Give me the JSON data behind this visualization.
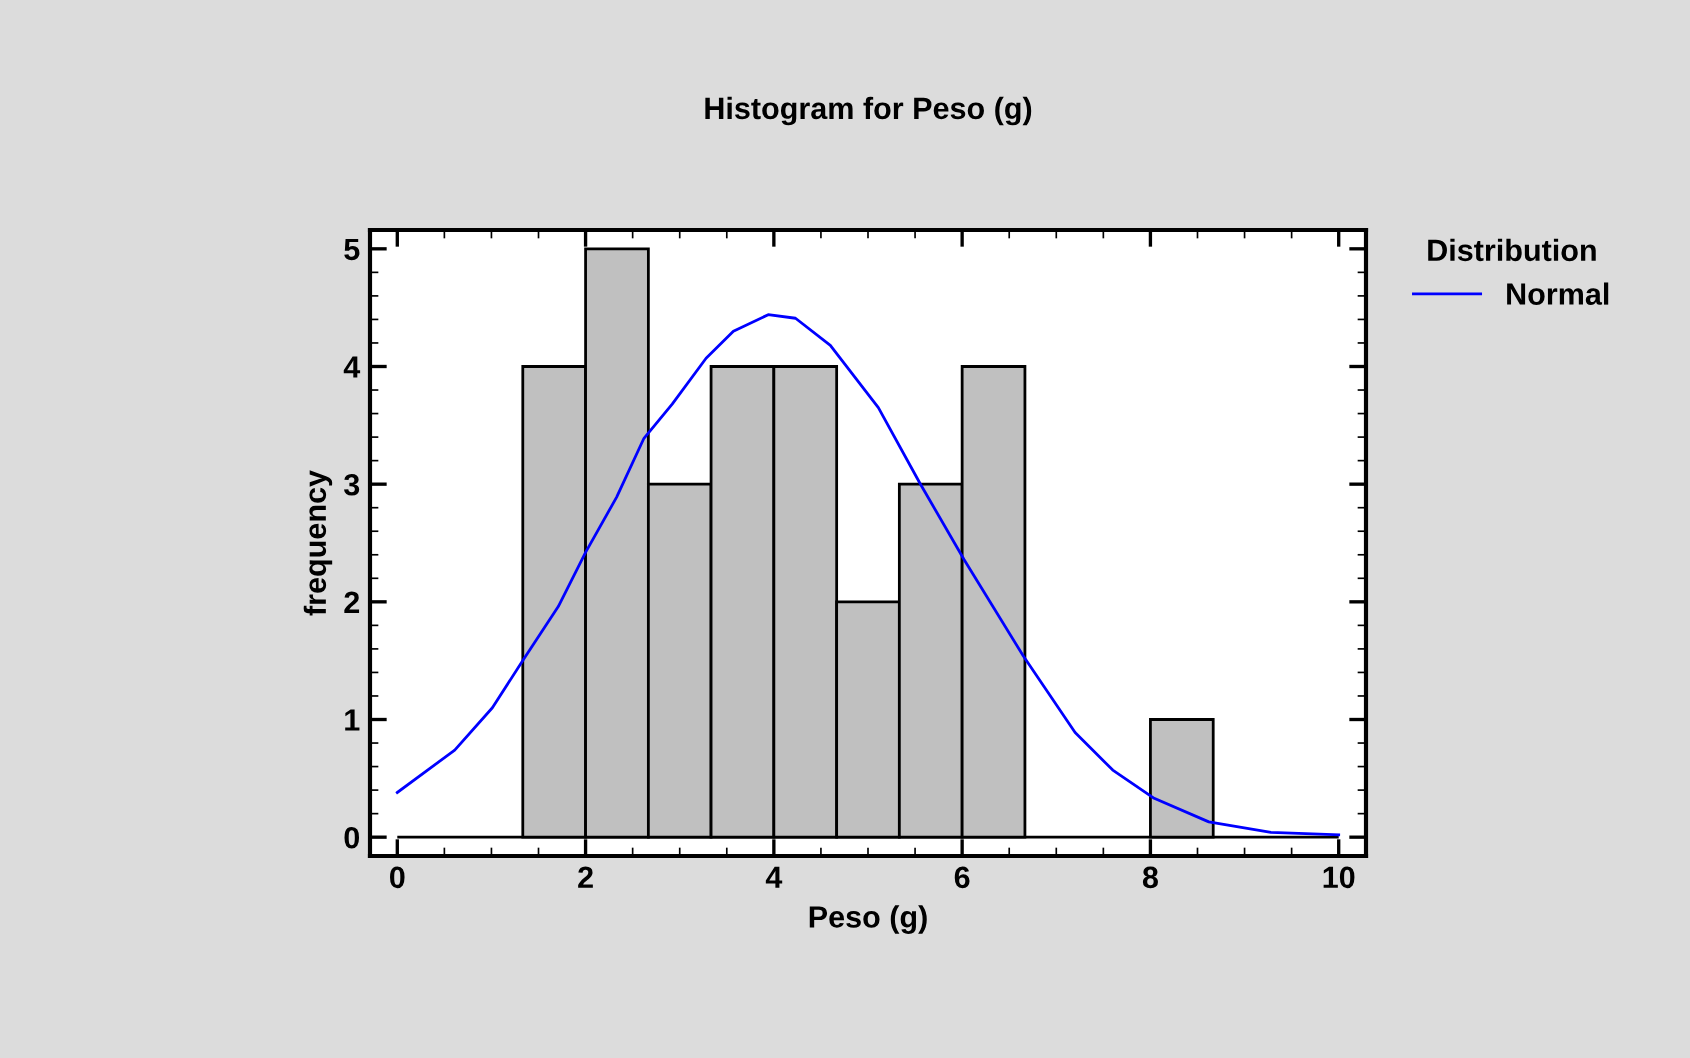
{
  "chart_data": {
    "type": "histogram",
    "title": "Histogram for Peso (g)",
    "xlabel": "Peso (g)",
    "ylabel": "frequency",
    "legend_title": "Distribution",
    "bins": [
      0,
      0.667,
      1.333,
      2,
      2.667,
      3.333,
      4,
      4.667,
      5.333,
      6,
      6.667,
      7.333,
      8,
      8.667,
      9.333,
      10
    ],
    "values": [
      0,
      0,
      4,
      5,
      3,
      4,
      4,
      2,
      3,
      4,
      0,
      0,
      1,
      0,
      0
    ],
    "color": "#c0c0c0",
    "series": [
      {
        "type": "line",
        "name": "Normal",
        "color": "#0000ff",
        "x": [
          0,
          0.61,
          1.01,
          1.34,
          1.71,
          2.0,
          2.33,
          2.62,
          2.92,
          3.28,
          3.57,
          3.94,
          4.23,
          4.6,
          5.11,
          5.55,
          6.02,
          6.65,
          7.2,
          7.6,
          8.04,
          8.62,
          9.28,
          10
        ],
        "values": [
          0.38,
          0.74,
          1.1,
          1.51,
          1.96,
          2.42,
          2.89,
          3.39,
          3.68,
          4.07,
          4.3,
          4.44,
          4.41,
          4.18,
          3.65,
          3.01,
          2.36,
          1.54,
          0.89,
          0.57,
          0.33,
          0.13,
          0.04,
          0.02
        ]
      }
    ],
    "xlim": [
      -0.29,
      10.29
    ],
    "ylim": [
      -0.16,
      5.16
    ],
    "xticks": [
      0,
      2,
      4,
      6,
      8,
      10
    ],
    "yticks": [
      0,
      1,
      2,
      3,
      4,
      5
    ],
    "legend": "top right"
  }
}
